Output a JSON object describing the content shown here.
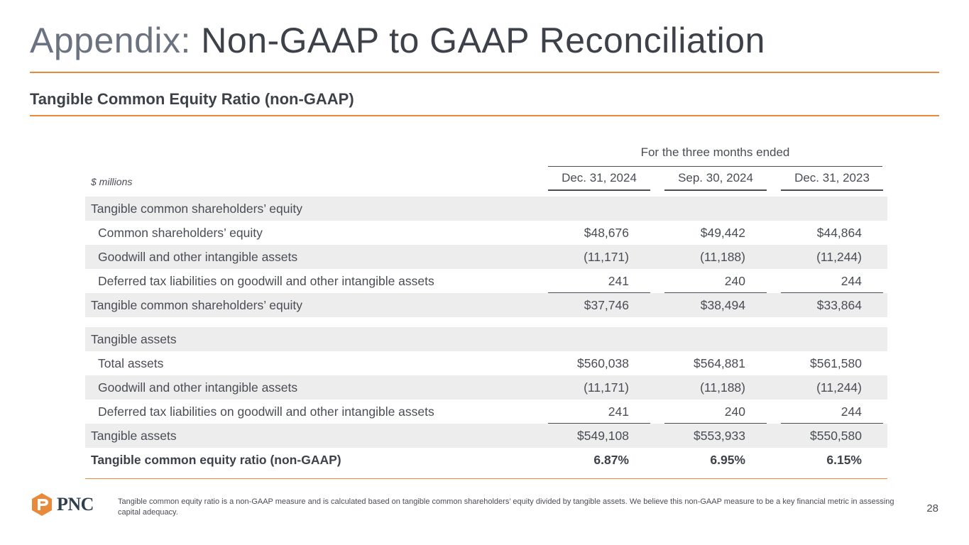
{
  "title": {
    "prefix": "Appendix: ",
    "main": "Non-GAAP to GAAP Reconciliation"
  },
  "subtitle": "Tangible Common Equity Ratio (non-GAAP)",
  "table": {
    "period_header": "For the three months ended",
    "unit_label": "$ millions",
    "columns": [
      "Dec. 31, 2024",
      "Sep. 30, 2024",
      "Dec. 31, 2023"
    ],
    "rows": [
      {
        "label": "Tangible common shareholders’ equity",
        "values": [
          "",
          "",
          ""
        ]
      },
      {
        "label": "Common shareholders’ equity",
        "values": [
          "$48,676",
          "$49,442",
          "$44,864"
        ]
      },
      {
        "label": "Goodwill and other intangible assets",
        "values": [
          "(11,171)",
          "(11,188)",
          "(11,244)"
        ]
      },
      {
        "label": "Deferred tax liabilities on goodwill and other intangible assets",
        "values": [
          "241",
          "240",
          "244"
        ]
      },
      {
        "label": "Tangible common shareholders’ equity",
        "values": [
          "$37,746",
          "$38,494",
          "$33,864"
        ]
      },
      {
        "label": "Tangible assets",
        "values": [
          "",
          "",
          ""
        ]
      },
      {
        "label": "Total assets",
        "values": [
          "$560,038",
          "$564,881",
          "$561,580"
        ]
      },
      {
        "label": "Goodwill and other intangible assets",
        "values": [
          "(11,171)",
          "(11,188)",
          "(11,244)"
        ]
      },
      {
        "label": "Deferred tax liabilities on goodwill and other intangible assets",
        "values": [
          "241",
          "240",
          "244"
        ]
      },
      {
        "label": "Tangible assets",
        "values": [
          "$549,108",
          "$553,933",
          "$550,580"
        ]
      },
      {
        "label": "Tangible common equity ratio (non-GAAP)",
        "values": [
          "6.87%",
          "6.95%",
          "6.15%"
        ]
      }
    ]
  },
  "footer": {
    "logo_text": "PNC",
    "footnote": "Tangible common equity ratio is a non-GAAP measure and is calculated based on tangible common shareholders’ equity divided by tangible assets. We believe this non-GAAP measure to be a key financial metric in assessing capital adequacy.",
    "page_number": "28"
  },
  "colors": {
    "accent": "#e98a3b",
    "text": "#4a4d55",
    "shade": "#ededed",
    "logo_navy": "#2e3f4f"
  }
}
